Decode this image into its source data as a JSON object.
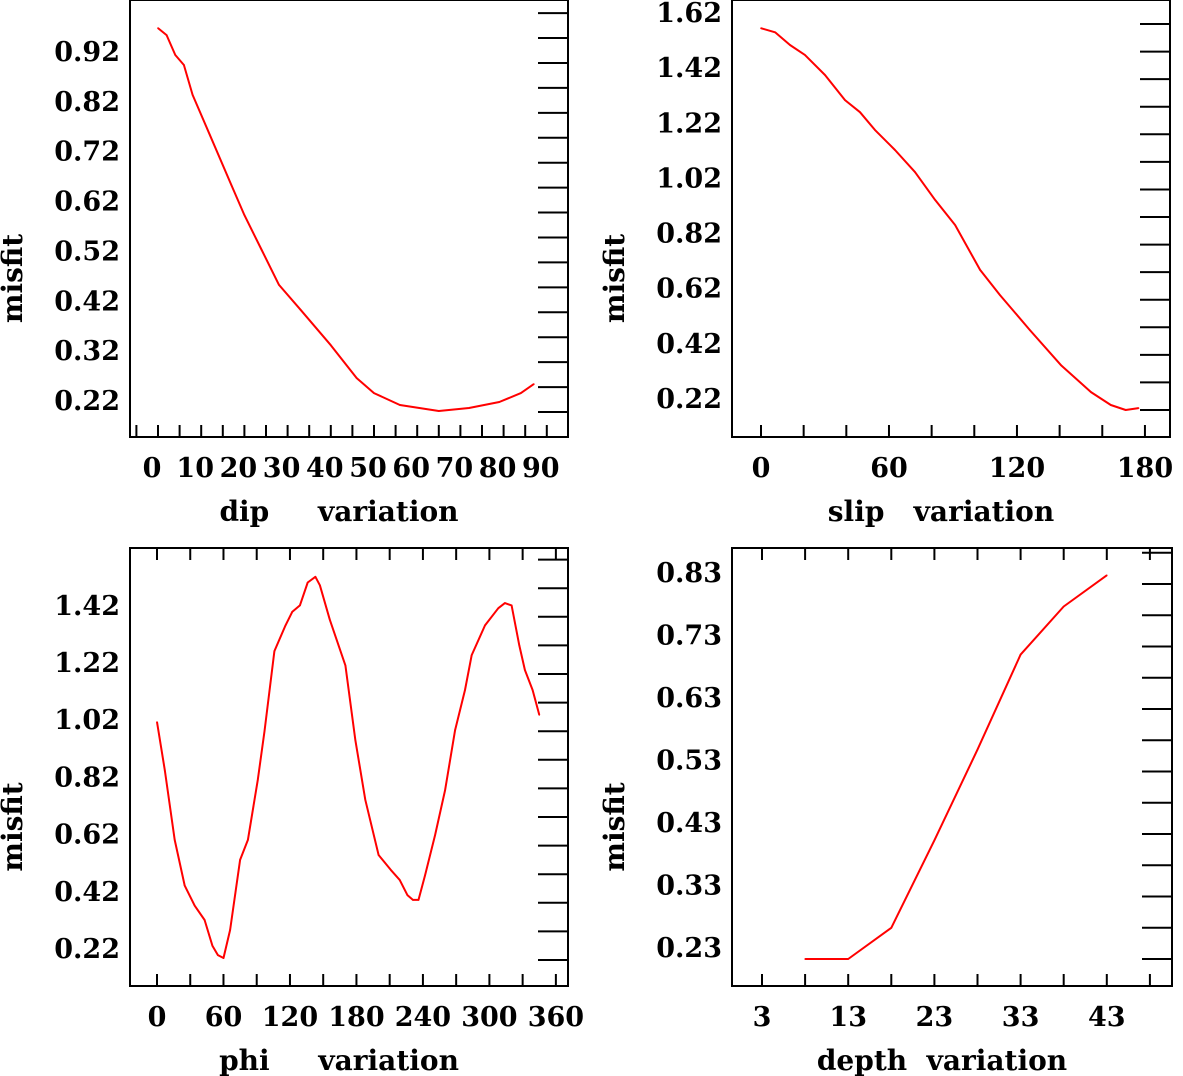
{
  "chart_data": [
    {
      "type": "line",
      "title": "",
      "xlabel": "dip     variation",
      "ylabel": "misfit",
      "xlim": [
        -6.5,
        95
      ],
      "ylim": [
        0.17,
        1.05
      ],
      "grid": false,
      "x_tick_labels": [
        "0",
        "10",
        "20",
        "30",
        "40",
        "50",
        "60",
        "70",
        "80",
        "90"
      ],
      "y_tick_labels": [
        "0.22",
        "0.32",
        "0.42",
        "0.52",
        "0.62",
        "0.72",
        "0.82",
        "0.92"
      ],
      "series_color": "#ff0000",
      "x": [
        0,
        2,
        4,
        6,
        8,
        12,
        17,
        20,
        24,
        28,
        33,
        40,
        46,
        50,
        56,
        65,
        72,
        79,
        84,
        87
      ],
      "y": [
        0.99,
        0.976,
        0.936,
        0.916,
        0.856,
        0.776,
        0.675,
        0.615,
        0.545,
        0.475,
        0.425,
        0.354,
        0.288,
        0.258,
        0.234,
        0.222,
        0.228,
        0.24,
        0.258,
        0.276
      ]
    },
    {
      "type": "line",
      "title": "",
      "xlabel": "slip   variation",
      "ylabel": "misfit",
      "xlim": [
        -13.6,
        191
      ],
      "ylim": [
        0.125,
        1.71
      ],
      "grid": false,
      "x_tick_labels": [
        "0",
        "60",
        "120",
        "180"
      ],
      "y_tick_labels": [
        "0.22",
        "0.42",
        "0.62",
        "0.82",
        "1.02",
        "1.22",
        "1.42",
        "1.62"
      ],
      "series_color": "#ff0000",
      "x": [
        0,
        6.6,
        13.6,
        20.6,
        30,
        39.4,
        46.4,
        53.4,
        62.8,
        72.2,
        81.6,
        91,
        102.7,
        112,
        126,
        140.6,
        154.7,
        164,
        171,
        177
      ],
      "y": [
        1.605,
        1.59,
        1.544,
        1.508,
        1.435,
        1.344,
        1.3,
        1.236,
        1.163,
        1.083,
        0.982,
        0.891,
        0.728,
        0.637,
        0.51,
        0.383,
        0.285,
        0.238,
        0.22,
        0.227
      ]
    },
    {
      "type": "line",
      "title": "",
      "xlabel": "phi     variation",
      "ylabel": "misfit",
      "xlim": [
        -24.4,
        370.8
      ],
      "ylim": [
        0.13,
        1.66
      ],
      "grid": false,
      "x_tick_labels": [
        "0",
        "60",
        "120",
        "180",
        "240",
        "300",
        "360"
      ],
      "y_tick_labels": [
        "0.22",
        "0.42",
        "0.62",
        "0.82",
        "1.02",
        "1.22",
        "1.42"
      ],
      "series_color": "#ff0000",
      "x": [
        0,
        7,
        16,
        25,
        34,
        43,
        50,
        55,
        60,
        66,
        75,
        82,
        91,
        97,
        106,
        116,
        122,
        129,
        136,
        143,
        147,
        156,
        170,
        179,
        188,
        200,
        211,
        219,
        226,
        231,
        236,
        242,
        251,
        260,
        269,
        278,
        284,
        296,
        308,
        314,
        320,
        327,
        332,
        339,
        345
      ],
      "y": [
        1.052,
        0.884,
        0.64,
        0.48,
        0.41,
        0.36,
        0.27,
        0.237,
        0.227,
        0.325,
        0.57,
        0.64,
        0.85,
        1.02,
        1.3,
        1.39,
        1.437,
        1.46,
        1.54,
        1.56,
        1.53,
        1.41,
        1.25,
        0.99,
        0.78,
        0.587,
        0.535,
        0.5,
        0.447,
        0.43,
        0.43,
        0.517,
        0.657,
        0.814,
        1.024,
        1.164,
        1.286,
        1.39,
        1.45,
        1.468,
        1.46,
        1.32,
        1.234,
        1.164,
        1.077
      ]
    },
    {
      "type": "line",
      "title": "",
      "xlabel": "depth  variation",
      "ylabel": "misfit",
      "xlim": [
        -0.5,
        50.5
      ],
      "ylim": [
        0.19,
        0.89
      ],
      "grid": false,
      "x_tick_labels": [
        "3",
        "13",
        "23",
        "33",
        "43"
      ],
      "y_tick_labels": [
        "0.23",
        "0.33",
        "0.43",
        "0.53",
        "0.63",
        "0.73",
        "0.83"
      ],
      "series_color": "#ff0000",
      "x": [
        8,
        13,
        18,
        23,
        28,
        33,
        38,
        43
      ],
      "y": [
        0.23,
        0.23,
        0.28,
        0.42,
        0.565,
        0.717,
        0.794,
        0.844
      ]
    }
  ]
}
